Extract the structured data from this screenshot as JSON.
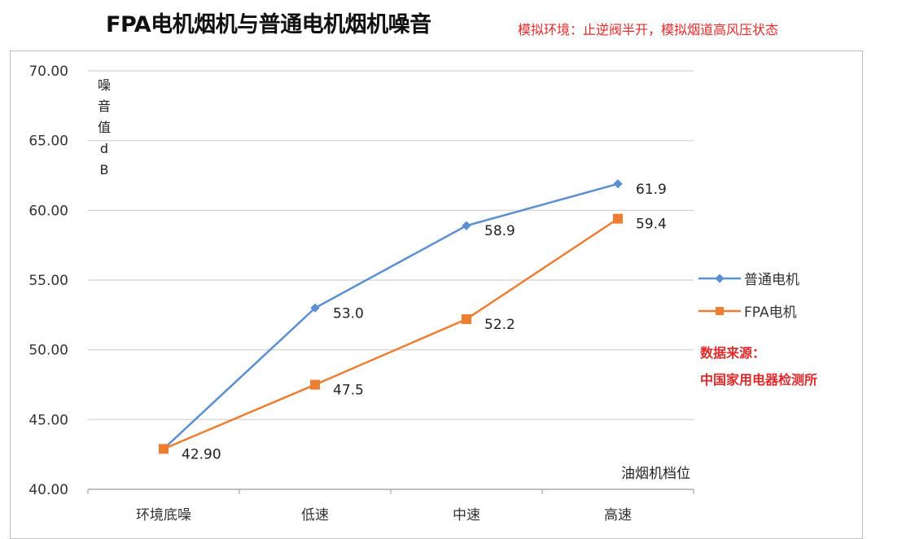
{
  "title": "FPA电机烟机与普通电机烟机噪音",
  "subtitle": "模拟环境：止逆阀半开，模拟烟道高风压状态",
  "source_label": "数据来源：",
  "source_name": "中国家用电器检测所",
  "chart_data": {
    "type": "line",
    "title": "FPA电机烟机与普通电机烟机噪音",
    "ylabel": "噪音值dB",
    "ylabel_chars": [
      "噪",
      "音",
      "值",
      "d",
      "B"
    ],
    "xlabel": "油烟机档位",
    "categories": [
      "环境底噪",
      "低速",
      "中速",
      "高速"
    ],
    "ylim": [
      40,
      70
    ],
    "yticks": [
      "40.00",
      "45.00",
      "50.00",
      "55.00",
      "60.00",
      "65.00",
      "70.00"
    ],
    "grid": true,
    "legend_position": "right",
    "series": [
      {
        "name": "普通电机",
        "color": "#5b8fd0",
        "marker": "diamond",
        "values": [
          42.9,
          53.0,
          58.9,
          61.9
        ],
        "labels": [
          "",
          "53.0",
          "58.9",
          "61.9"
        ]
      },
      {
        "name": "FPA电机",
        "color": "#ed7d31",
        "marker": "square",
        "values": [
          42.9,
          47.5,
          52.2,
          59.4
        ],
        "labels": [
          "42.90",
          "47.5",
          "52.2",
          "59.4"
        ]
      }
    ]
  }
}
